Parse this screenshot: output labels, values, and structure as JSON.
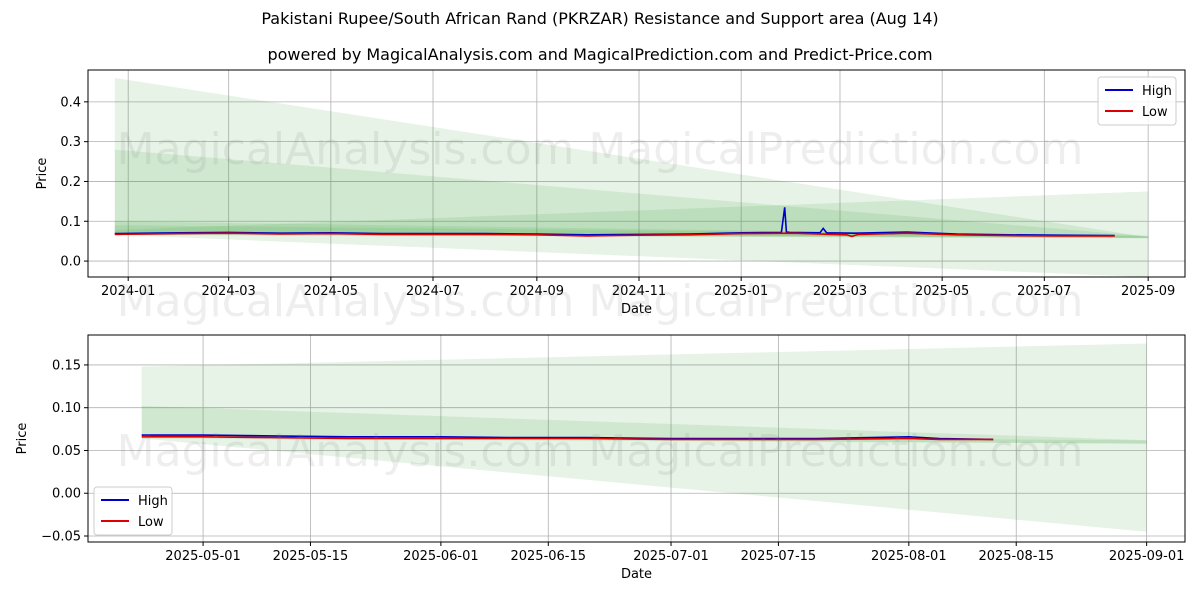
{
  "page": {
    "title": "Pakistani Rupee/South African Rand (PKRZAR) Resistance and Support area (Aug 14)",
    "subtitle": "powered by MagicalAnalysis.com and MagicalPrediction.com and Predict-Price.com",
    "watermark": "MagicalAnalysis.com    MagicalPrediction.com"
  },
  "colors": {
    "high": "#0000cc",
    "low": "#dd0000",
    "band": "#2e9e2e",
    "grid": "#b0b0b0"
  },
  "chart_data": [
    {
      "type": "line",
      "xlabel": "Date",
      "ylabel": "Price",
      "xlim": [
        "2023-12-08",
        "2025-09-23"
      ],
      "ylim": [
        -0.04,
        0.48
      ],
      "x_ticks": [
        "2024-01",
        "2024-03",
        "2024-05",
        "2024-07",
        "2024-09",
        "2024-11",
        "2025-01",
        "2025-03",
        "2025-05",
        "2025-07",
        "2025-09"
      ],
      "y_ticks": [
        0.0,
        0.1,
        0.2,
        0.3,
        0.4
      ],
      "y_tick_labels": [
        "0.0",
        "0.1",
        "0.2",
        "0.3",
        "0.4"
      ],
      "grid": true,
      "legend": "top-right",
      "series": [
        {
          "name": "High",
          "x": [
            "2023-12-24",
            "2024-02-01",
            "2024-03-01",
            "2024-04-01",
            "2024-05-01",
            "2024-06-01",
            "2024-07-01",
            "2024-08-01",
            "2024-09-01",
            "2024-10-01",
            "2024-11-01",
            "2024-12-01",
            "2025-01-01",
            "2025-01-25",
            "2025-01-27",
            "2025-01-28",
            "2025-01-30",
            "2025-02-17",
            "2025-02-19",
            "2025-02-21",
            "2025-03-10",
            "2025-04-10",
            "2025-05-10",
            "2025-06-10",
            "2025-07-10",
            "2025-08-12"
          ],
          "values": [
            0.069,
            0.071,
            0.072,
            0.07,
            0.071,
            0.069,
            0.069,
            0.069,
            0.068,
            0.066,
            0.067,
            0.068,
            0.071,
            0.072,
            0.135,
            0.073,
            0.072,
            0.071,
            0.082,
            0.071,
            0.07,
            0.073,
            0.068,
            0.066,
            0.065,
            0.064
          ]
        },
        {
          "name": "Low",
          "x": [
            "2023-12-24",
            "2024-02-01",
            "2024-03-01",
            "2024-04-01",
            "2024-05-01",
            "2024-06-01",
            "2024-07-01",
            "2024-08-01",
            "2024-09-01",
            "2024-10-01",
            "2024-11-01",
            "2024-12-01",
            "2025-01-01",
            "2025-02-01",
            "2025-03-05",
            "2025-03-08",
            "2025-03-12",
            "2025-04-10",
            "2025-05-10",
            "2025-06-10",
            "2025-07-10",
            "2025-08-12"
          ],
          "values": [
            0.067,
            0.069,
            0.07,
            0.068,
            0.069,
            0.067,
            0.067,
            0.067,
            0.066,
            0.063,
            0.065,
            0.066,
            0.069,
            0.07,
            0.066,
            0.062,
            0.067,
            0.07,
            0.066,
            0.064,
            0.063,
            0.063
          ]
        }
      ],
      "bands": [
        {
          "x": [
            "2023-12-24",
            "2025-09-01"
          ],
          "upper": [
            0.46,
            0.06
          ],
          "lower": [
            0.07,
            0.058
          ]
        },
        {
          "x": [
            "2023-12-24",
            "2025-09-01"
          ],
          "upper": [
            0.28,
            0.062
          ],
          "lower": [
            0.066,
            0.058
          ]
        },
        {
          "x": [
            "2023-12-24",
            "2025-09-01"
          ],
          "upper": [
            0.1,
            0.062
          ],
          "lower": [
            0.066,
            0.057
          ]
        },
        {
          "x": [
            "2023-12-24",
            "2025-09-01"
          ],
          "upper": [
            0.078,
            0.175
          ],
          "lower": [
            0.066,
            -0.04
          ]
        },
        {
          "x": [
            "2023-12-24",
            "2025-09-01"
          ],
          "upper": [
            0.09,
            0.064
          ],
          "lower": [
            0.072,
            0.059
          ]
        }
      ]
    },
    {
      "type": "line",
      "xlabel": "Date",
      "ylabel": "Price",
      "xlim": [
        "2025-04-16",
        "2025-09-06"
      ],
      "ylim": [
        -0.057,
        0.185
      ],
      "x_ticks": [
        "2025-05-01",
        "2025-05-15",
        "2025-06-01",
        "2025-06-15",
        "2025-07-01",
        "2025-07-15",
        "2025-08-01",
        "2025-08-15",
        "2025-09-01"
      ],
      "y_ticks": [
        -0.05,
        0.0,
        0.05,
        0.1,
        0.15
      ],
      "y_tick_labels": [
        "−0.05",
        "0.00",
        "0.05",
        "0.10",
        "0.15"
      ],
      "grid": true,
      "legend": "bottom-left",
      "series": [
        {
          "name": "High",
          "x": [
            "2025-04-23",
            "2025-05-01",
            "2025-05-10",
            "2025-05-20",
            "2025-06-01",
            "2025-06-10",
            "2025-06-20",
            "2025-07-01",
            "2025-07-10",
            "2025-07-20",
            "2025-08-01",
            "2025-08-05",
            "2025-08-12"
          ],
          "values": [
            0.068,
            0.068,
            0.067,
            0.066,
            0.066,
            0.065,
            0.065,
            0.064,
            0.064,
            0.064,
            0.066,
            0.064,
            0.063
          ]
        },
        {
          "name": "Low",
          "x": [
            "2025-04-23",
            "2025-05-01",
            "2025-05-10",
            "2025-05-20",
            "2025-06-01",
            "2025-06-10",
            "2025-06-20",
            "2025-07-01",
            "2025-07-10",
            "2025-07-20",
            "2025-08-01",
            "2025-08-05",
            "2025-08-12"
          ],
          "values": [
            0.066,
            0.066,
            0.065,
            0.064,
            0.064,
            0.064,
            0.064,
            0.063,
            0.063,
            0.063,
            0.064,
            0.063,
            0.063
          ]
        }
      ],
      "bands": [
        {
          "x": [
            "2025-04-23",
            "2025-09-01"
          ],
          "upper": [
            0.148,
            0.175
          ],
          "lower": [
            0.064,
            -0.045
          ]
        },
        {
          "x": [
            "2025-04-23",
            "2025-09-01"
          ],
          "upper": [
            0.102,
            0.062
          ],
          "lower": [
            0.066,
            0.058
          ]
        },
        {
          "x": [
            "2025-04-23",
            "2025-09-01"
          ],
          "upper": [
            0.068,
            0.062
          ],
          "lower": [
            0.064,
            0.058
          ]
        }
      ]
    }
  ]
}
